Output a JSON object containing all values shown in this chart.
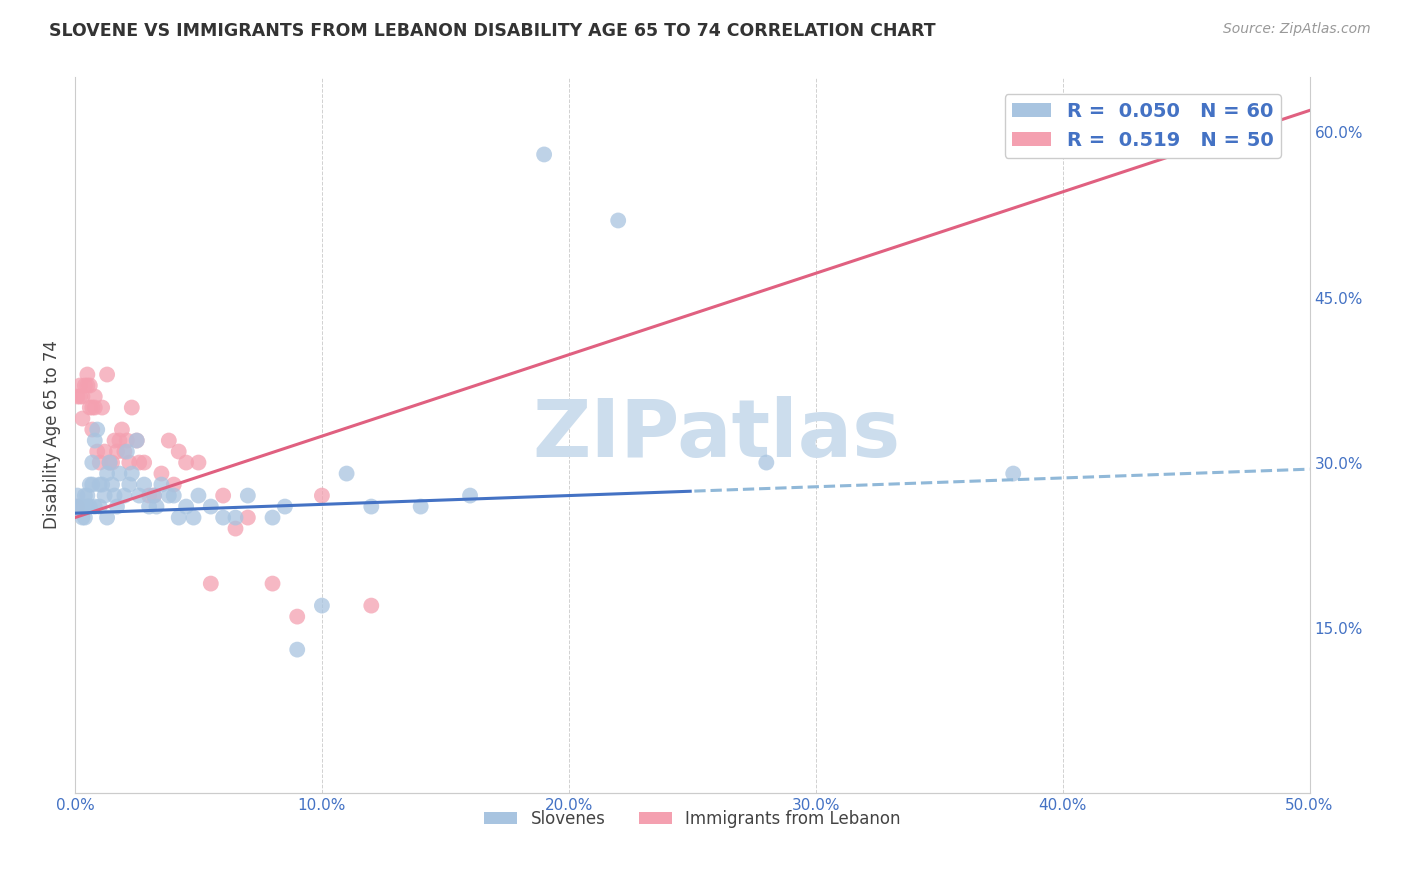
{
  "title": "SLOVENE VS IMMIGRANTS FROM LEBANON DISABILITY AGE 65 TO 74 CORRELATION CHART",
  "source": "Source: ZipAtlas.com",
  "ylabel": "Disability Age 65 to 74",
  "legend_label_1": "Slovenes",
  "legend_label_2": "Immigrants from Lebanon",
  "R1": 0.05,
  "N1": 60,
  "R2": 0.519,
  "N2": 50,
  "xlim": [
    0.0,
    0.5
  ],
  "ylim": [
    0.0,
    0.65
  ],
  "xticks": [
    0.0,
    0.1,
    0.2,
    0.3,
    0.4,
    0.5
  ],
  "yticks": [
    0.15,
    0.3,
    0.45,
    0.6
  ],
  "ytick_labels": [
    "15.0%",
    "30.0%",
    "45.0%",
    "60.0%"
  ],
  "xtick_labels": [
    "0.0%",
    "10.0%",
    "20.0%",
    "30.0%",
    "40.0%",
    "50.0%"
  ],
  "color_slovenes": "#a8c4e0",
  "color_lebanon": "#f4a0b0",
  "color_line_slovenes": "#4472c4",
  "color_line_lebanon": "#e06080",
  "color_dashed": "#90b8d8",
  "watermark": "ZIPatlas",
  "watermark_color": "#ccdded",
  "slovenes_x": [
    0.001,
    0.001,
    0.002,
    0.003,
    0.003,
    0.004,
    0.004,
    0.005,
    0.005,
    0.006,
    0.006,
    0.007,
    0.007,
    0.008,
    0.008,
    0.009,
    0.01,
    0.01,
    0.011,
    0.012,
    0.013,
    0.013,
    0.014,
    0.015,
    0.016,
    0.017,
    0.018,
    0.02,
    0.021,
    0.022,
    0.023,
    0.025,
    0.026,
    0.028,
    0.03,
    0.032,
    0.033,
    0.035,
    0.038,
    0.04,
    0.042,
    0.045,
    0.048,
    0.05,
    0.055,
    0.06,
    0.065,
    0.07,
    0.08,
    0.085,
    0.09,
    0.1,
    0.11,
    0.12,
    0.14,
    0.16,
    0.19,
    0.22,
    0.28,
    0.38
  ],
  "slovenes_y": [
    0.26,
    0.27,
    0.26,
    0.26,
    0.25,
    0.27,
    0.25,
    0.27,
    0.26,
    0.28,
    0.26,
    0.3,
    0.28,
    0.32,
    0.26,
    0.33,
    0.28,
    0.26,
    0.28,
    0.27,
    0.29,
    0.25,
    0.3,
    0.28,
    0.27,
    0.26,
    0.29,
    0.27,
    0.31,
    0.28,
    0.29,
    0.32,
    0.27,
    0.28,
    0.26,
    0.27,
    0.26,
    0.28,
    0.27,
    0.27,
    0.25,
    0.26,
    0.25,
    0.27,
    0.26,
    0.25,
    0.25,
    0.27,
    0.25,
    0.26,
    0.13,
    0.17,
    0.29,
    0.26,
    0.26,
    0.27,
    0.58,
    0.52,
    0.3,
    0.29
  ],
  "lebanon_x": [
    0.001,
    0.001,
    0.002,
    0.002,
    0.003,
    0.003,
    0.004,
    0.005,
    0.005,
    0.006,
    0.006,
    0.007,
    0.007,
    0.008,
    0.008,
    0.009,
    0.01,
    0.011,
    0.012,
    0.013,
    0.014,
    0.015,
    0.016,
    0.017,
    0.018,
    0.019,
    0.02,
    0.021,
    0.022,
    0.023,
    0.025,
    0.026,
    0.028,
    0.03,
    0.032,
    0.035,
    0.038,
    0.04,
    0.042,
    0.045,
    0.05,
    0.055,
    0.06,
    0.065,
    0.07,
    0.08,
    0.09,
    0.1,
    0.12,
    0.46
  ],
  "lebanon_y": [
    0.26,
    0.36,
    0.36,
    0.37,
    0.36,
    0.34,
    0.37,
    0.37,
    0.38,
    0.35,
    0.37,
    0.35,
    0.33,
    0.36,
    0.35,
    0.31,
    0.3,
    0.35,
    0.31,
    0.38,
    0.3,
    0.3,
    0.32,
    0.31,
    0.32,
    0.33,
    0.31,
    0.32,
    0.3,
    0.35,
    0.32,
    0.3,
    0.3,
    0.27,
    0.27,
    0.29,
    0.32,
    0.28,
    0.31,
    0.3,
    0.3,
    0.19,
    0.27,
    0.24,
    0.25,
    0.19,
    0.16,
    0.27,
    0.17,
    0.62
  ]
}
